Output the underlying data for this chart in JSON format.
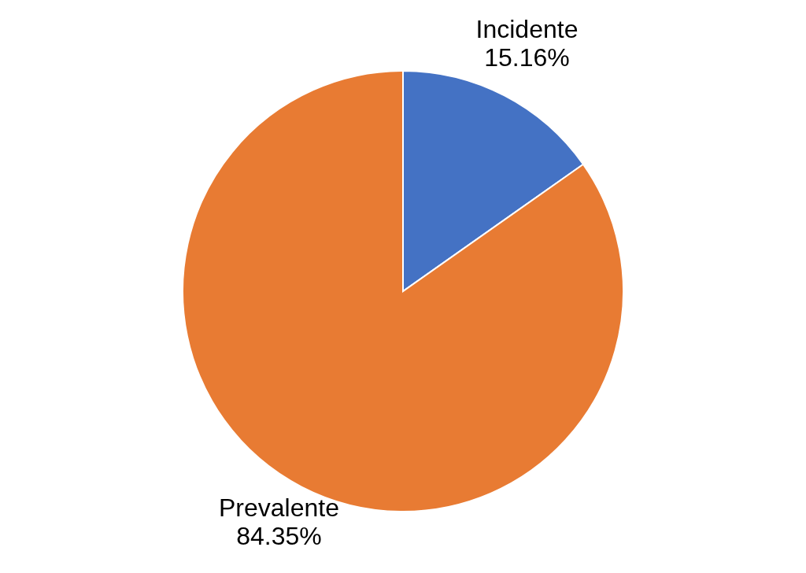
{
  "chart_data": {
    "type": "pie",
    "categories": [
      "Incidente",
      "Prevalente"
    ],
    "values": [
      15.16,
      84.35
    ],
    "colors": [
      "#4472c4",
      "#e87b33"
    ],
    "value_labels": [
      "15.16%",
      "84.35%"
    ]
  }
}
